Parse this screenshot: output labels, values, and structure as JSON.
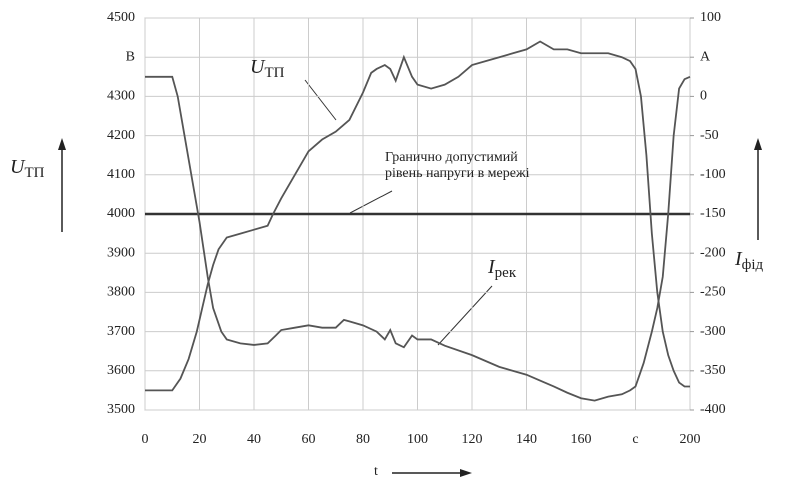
{
  "chart_data": {
    "type": "line",
    "xlim": [
      0,
      200
    ],
    "xticks": [
      0,
      20,
      40,
      60,
      80,
      100,
      120,
      140,
      160,
      {
        "value": 180,
        "label": "c"
      },
      200
    ],
    "ylim": [
      3500,
      4500
    ],
    "yticks": [
      3500,
      3600,
      3700,
      3800,
      3900,
      4000,
      4100,
      4200,
      4300,
      {
        "value": 4400,
        "label": "B"
      },
      4500
    ],
    "y2lim": [
      -400,
      100
    ],
    "y2ticks": [
      -400,
      -350,
      -300,
      -250,
      -200,
      -150,
      -100,
      -50,
      0,
      {
        "value": 50,
        "label": "A"
      },
      100
    ],
    "grid": true,
    "x_label": "t",
    "threshold": 4000,
    "annotations": [
      {
        "text": "U",
        "sub": "ТП"
      },
      {
        "text": "Гранично допустимий"
      },
      {
        "text": "рівень напруги в мережі"
      },
      {
        "text": "I",
        "sub": "рек"
      },
      {
        "text": "U",
        "sub": "ТП"
      },
      {
        "text": "I",
        "sub": "фід"
      }
    ],
    "series": [
      {
        "color": "#555555",
        "x": [
          0,
          10,
          13,
          16,
          19,
          21,
          23,
          25,
          27,
          30,
          35,
          40,
          45,
          47,
          50,
          55,
          60,
          65,
          70,
          75,
          80,
          83,
          85,
          88,
          90,
          92,
          95,
          98,
          100,
          105,
          110,
          115,
          120,
          125,
          130,
          135,
          140,
          145,
          150,
          155,
          160,
          165,
          170,
          175,
          178,
          180,
          182,
          184,
          186,
          188,
          190,
          192,
          194,
          196,
          198,
          200
        ],
        "values": [
          3550,
          3550,
          3580,
          3630,
          3700,
          3760,
          3820,
          3870,
          3910,
          3940,
          3950,
          3960,
          3970,
          4000,
          4040,
          4100,
          4160,
          4190,
          4210,
          4240,
          4310,
          4360,
          4370,
          4380,
          4370,
          4340,
          4400,
          4350,
          4330,
          4320,
          4330,
          4350,
          4380,
          4390,
          4400,
          4410,
          4420,
          4440,
          4420,
          4420,
          4410,
          4410,
          4410,
          4400,
          4390,
          4370,
          4300,
          4150,
          3950,
          3800,
          3700,
          3640,
          3600,
          3570,
          3560,
          3560
        ]
      },
      {
        "color": "#555555",
        "axis": "y2",
        "x": [
          0,
          10,
          12,
          15,
          18,
          20,
          23,
          25,
          28,
          30,
          35,
          40,
          45,
          48,
          50,
          55,
          60,
          65,
          70,
          73,
          75,
          80,
          85,
          88,
          90,
          92,
          95,
          98,
          100,
          105,
          110,
          120,
          130,
          140,
          150,
          155,
          160,
          165,
          170,
          175,
          178,
          180,
          183,
          186,
          188,
          190,
          192,
          194,
          196,
          198,
          200
        ],
        "values": [
          25,
          25,
          0,
          -60,
          -120,
          -160,
          -230,
          -270,
          -300,
          -310,
          -315,
          -317,
          -315,
          -305,
          -298,
          -295,
          -292,
          -295,
          -295,
          -285,
          -287,
          -292,
          -300,
          -310,
          -298,
          -315,
          -320,
          -305,
          -310,
          -310,
          -318,
          -330,
          -345,
          -355,
          -370,
          -378,
          -385,
          -388,
          -383,
          -380,
          -375,
          -370,
          -340,
          -300,
          -270,
          -230,
          -150,
          -50,
          10,
          22,
          25
        ]
      }
    ]
  }
}
